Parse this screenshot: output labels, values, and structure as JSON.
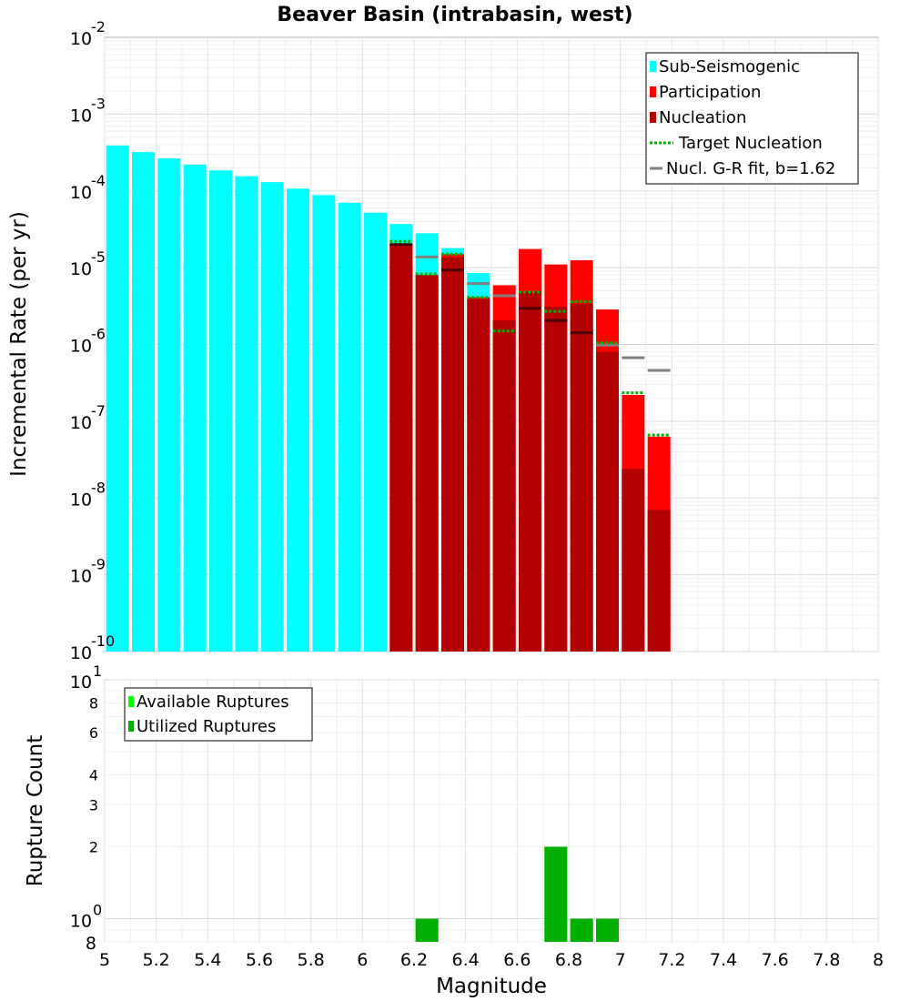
{
  "title": "Beaver Basin (intrabasin, west)",
  "colors": {
    "sub_seismogenic": "#00ffff",
    "participation": "#ff0000",
    "nucleation": "#b30000",
    "target_nucleation": "#00b300",
    "gr_fit": "#808080",
    "available_ruptures": "#00ff00",
    "utilized_ruptures": "#00b000"
  },
  "chart_data": [
    {
      "type": "bar",
      "name": "mfd",
      "title": "Beaver Basin (intrabasin, west)",
      "xlabel": "Magnitude",
      "ylabel": "Incremental Rate (per yr)",
      "yscale": "log",
      "xlim": [
        5,
        8
      ],
      "ylim": [
        1e-10,
        0.01
      ],
      "y_ticks": [
        {
          "base": "10",
          "exp": "-10",
          "value": 1e-10
        },
        {
          "base": "10",
          "exp": "-9",
          "value": 1e-09
        },
        {
          "base": "10",
          "exp": "-8",
          "value": 1e-08
        },
        {
          "base": "10",
          "exp": "-7",
          "value": 1e-07
        },
        {
          "base": "10",
          "exp": "-6",
          "value": 1e-06
        },
        {
          "base": "10",
          "exp": "-5",
          "value": 1e-05
        },
        {
          "base": "10",
          "exp": "-4",
          "value": 0.0001
        },
        {
          "base": "10",
          "exp": "-3",
          "value": 0.001
        },
        {
          "base": "10",
          "exp": "-2",
          "value": 0.01
        }
      ],
      "legend": [
        {
          "label": "Sub-Seismogenic",
          "kind": "box",
          "color": "#00ffff"
        },
        {
          "label": "Participation",
          "kind": "box",
          "color": "#ff0000"
        },
        {
          "label": "Nucleation",
          "kind": "box",
          "color": "#b30000"
        },
        {
          "label": "Target Nucleation",
          "kind": "dotted",
          "color": "#00b300"
        },
        {
          "label": "Nucl. G-R fit, b=1.62",
          "kind": "line",
          "color": "#808080"
        }
      ],
      "series": [
        {
          "name": "Sub-Seismogenic",
          "x": [
            5.05,
            5.15,
            5.25,
            5.35,
            5.45,
            5.55,
            5.65,
            5.75,
            5.85,
            5.95,
            6.05,
            6.15,
            6.25,
            6.35,
            6.45
          ],
          "values": [
            0.00039,
            0.00032,
            0.000265,
            0.00022,
            0.000185,
            0.000155,
            0.00013,
            0.000107,
            8.8e-05,
            7e-05,
            5.2e-05,
            3.7e-05,
            2.8e-05,
            1.8e-05,
            8.5e-06
          ]
        },
        {
          "name": "Participation",
          "x": [
            6.15,
            6.25,
            6.35,
            6.45,
            6.55,
            6.65,
            6.75,
            6.85,
            6.95,
            7.05,
            7.15
          ],
          "values": [
            2e-05,
            8e-06,
            1.5e-05,
            4.1e-06,
            5.9e-06,
            1.75e-05,
            1.1e-05,
            1.25e-05,
            2.85e-06,
            2.2e-07,
            6.3e-08
          ]
        },
        {
          "name": "Nucleation",
          "x": [
            6.15,
            6.25,
            6.35,
            6.45,
            6.55,
            6.65,
            6.75,
            6.85,
            6.95,
            7.05,
            7.15
          ],
          "values": [
            2e-05,
            8e-06,
            1.35e-05,
            3.9e-06,
            2.05e-06,
            4.9e-06,
            3.1e-06,
            3.4e-06,
            8e-07,
            2.4e-08,
            7e-09
          ]
        },
        {
          "name": "Target Nucleation",
          "x": [
            6.15,
            6.25,
            6.35,
            6.45,
            6.55,
            6.65,
            6.75,
            6.85,
            6.95,
            7.05,
            7.15
          ],
          "values": [
            2.2e-05,
            8.3e-06,
            1.5e-05,
            4.1e-06,
            1.5e-06,
            4.8e-06,
            2.7e-06,
            3.6e-06,
            1.05e-06,
            2.35e-07,
            6.6e-08
          ]
        },
        {
          "name": "Nucl. G-R fit, b=1.62",
          "x": [
            6.15,
            6.25,
            6.35,
            6.45,
            6.55,
            6.65,
            6.75,
            6.85,
            6.95,
            7.05,
            7.15
          ],
          "values": [
            2e-05,
            1.38e-05,
            9.3e-06,
            6.2e-06,
            4.3e-06,
            2.95e-06,
            2.05e-06,
            1.42e-06,
            9.8e-07,
            6.7e-07,
            4.6e-07
          ]
        }
      ]
    },
    {
      "type": "bar",
      "name": "rupture-count",
      "xlabel": "Magnitude",
      "ylabel": "Rupture Count",
      "yscale": "log",
      "xlim": [
        5,
        8
      ],
      "ylim": [
        0.8,
        10
      ],
      "x_ticks": [
        "5",
        "5.2",
        "5.4",
        "5.6",
        "5.8",
        "6",
        "6.2",
        "6.4",
        "6.6",
        "6.8",
        "7",
        "7.2",
        "7.4",
        "7.6",
        "7.8",
        "8"
      ],
      "y_major_ticks": [
        {
          "base": "10",
          "exp": "1",
          "value": 10
        },
        {
          "base": "10",
          "exp": "0",
          "value": 1
        }
      ],
      "y_minor_ticks": [
        "8",
        "6",
        "4",
        "3",
        "2",
        "8"
      ],
      "y_minor_values": [
        8,
        6,
        4,
        3,
        2,
        0.8
      ],
      "legend": [
        {
          "label": "Available Ruptures",
          "kind": "box",
          "color": "#00ff00"
        },
        {
          "label": "Utilized Ruptures",
          "kind": "box",
          "color": "#00b000"
        }
      ],
      "series": [
        {
          "name": "Available Ruptures",
          "x": [
            6.25,
            6.75,
            6.85,
            6.95
          ],
          "values": [
            1,
            2,
            1,
            1
          ]
        },
        {
          "name": "Utilized Ruptures",
          "x": [
            6.25,
            6.75,
            6.85,
            6.95
          ],
          "values": [
            1,
            2,
            1,
            1
          ]
        }
      ]
    }
  ]
}
